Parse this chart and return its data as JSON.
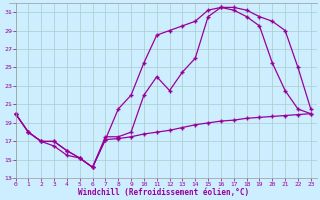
{
  "xlabel": "Windchill (Refroidissement éolien,°C)",
  "background_color": "#cceeff",
  "line_color": "#990099",
  "grid_color": "#aacccc",
  "xlim": [
    -0.5,
    23.5
  ],
  "ylim": [
    13,
    32
  ],
  "yticks": [
    13,
    15,
    17,
    19,
    21,
    23,
    25,
    27,
    29,
    31
  ],
  "xticks": [
    0,
    1,
    2,
    3,
    4,
    5,
    6,
    7,
    8,
    9,
    10,
    11,
    12,
    13,
    14,
    15,
    16,
    17,
    18,
    19,
    20,
    21,
    22,
    23
  ],
  "line1_x": [
    0,
    1,
    2,
    3,
    4,
    5,
    6,
    7,
    8,
    9,
    10,
    11,
    12,
    13,
    14,
    15,
    16,
    17,
    18,
    19,
    20,
    21,
    22,
    23
  ],
  "line1_y": [
    20,
    18,
    17,
    16.5,
    15.5,
    15.2,
    14.2,
    17.2,
    17.3,
    17.5,
    17.8,
    18.0,
    18.2,
    18.5,
    18.8,
    19.0,
    19.2,
    19.3,
    19.5,
    19.6,
    19.7,
    19.8,
    19.9,
    20.0
  ],
  "line2_x": [
    0,
    1,
    2,
    3,
    4,
    5,
    6,
    7,
    8,
    9,
    10,
    11,
    12,
    13,
    14,
    15,
    16,
    17,
    18,
    19,
    20,
    21,
    22,
    23
  ],
  "line2_y": [
    20,
    18,
    17,
    17,
    16,
    15.2,
    14.2,
    17.2,
    20.5,
    22,
    25.5,
    28.5,
    29.0,
    29.5,
    30.0,
    31.2,
    31.5,
    31.2,
    30.5,
    29.5,
    25.5,
    22.5,
    20.5,
    20.0
  ],
  "line3_x": [
    0,
    1,
    2,
    3,
    4,
    5,
    6,
    7,
    8,
    9,
    10,
    11,
    12,
    13,
    14,
    15,
    16,
    17,
    18,
    19,
    20,
    21,
    22,
    23
  ],
  "line3_y": [
    20,
    18,
    17,
    17,
    16,
    15.2,
    14.2,
    17.5,
    17.5,
    18,
    22,
    24,
    22.5,
    24.5,
    26.0,
    30.5,
    31.5,
    31.5,
    31.2,
    30.5,
    30.0,
    29.0,
    25.0,
    20.5
  ]
}
